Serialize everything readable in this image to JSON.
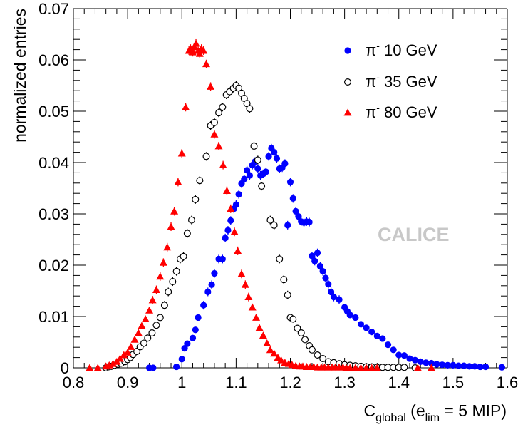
{
  "chart_data": {
    "type": "scatter",
    "x_label": {
      "main": "C",
      "sub": "global",
      "mid": " (e",
      "sub2": "lim",
      "end": " = 5 MIP)"
    },
    "y_label": "normalized entries",
    "xlim": [
      0.8,
      1.6
    ],
    "ylim": [
      0,
      0.07
    ],
    "x_ticks": [
      "0.8",
      "0.9",
      "1",
      "1.1",
      "1.2",
      "1.3",
      "1.4",
      "1.5",
      "1.6"
    ],
    "y_ticks": [
      "0",
      "0.01",
      "0.02",
      "0.03",
      "0.04",
      "0.05",
      "0.06",
      "0.07"
    ],
    "grid": false,
    "legend_position": "top-right",
    "watermark": "CALICE",
    "series": [
      {
        "name": "π⁻ 10 GeV",
        "name_main": "π",
        "name_sup": "-",
        "name_rest": " 10 GeV",
        "color": "#0000ff",
        "marker": "filled-circle",
        "points": [
          [
            0.94,
            0
          ],
          [
            0.947,
            0
          ],
          [
            0.99,
            0.0002
          ],
          [
            1.0,
            0.0017
          ],
          [
            1.005,
            0.0038
          ],
          [
            1.01,
            0.0047
          ],
          [
            1.02,
            0.0058
          ],
          [
            1.025,
            0.0074
          ],
          [
            1.03,
            0.0098
          ],
          [
            1.04,
            0.0122
          ],
          [
            1.048,
            0.0148
          ],
          [
            1.055,
            0.0162
          ],
          [
            1.06,
            0.0184
          ],
          [
            1.068,
            0.0212
          ],
          [
            1.075,
            0.0212
          ],
          [
            1.08,
            0.0253
          ],
          [
            1.085,
            0.0268
          ],
          [
            1.09,
            0.0287
          ],
          [
            1.096,
            0.031
          ],
          [
            1.1,
            0.0318
          ],
          [
            1.105,
            0.0338
          ],
          [
            1.11,
            0.0359
          ],
          [
            1.115,
            0.0368
          ],
          [
            1.12,
            0.0385
          ],
          [
            1.125,
            0.0375
          ],
          [
            1.13,
            0.0395
          ],
          [
            1.135,
            0.0402
          ],
          [
            1.14,
            0.0388
          ],
          [
            1.145,
            0.0375
          ],
          [
            1.15,
            0.0378
          ],
          [
            1.155,
            0.0382
          ],
          [
            1.16,
            0.0412
          ],
          [
            1.165,
            0.0428
          ],
          [
            1.17,
            0.042
          ],
          [
            1.175,
            0.0408
          ],
          [
            1.18,
            0.0388
          ],
          [
            1.185,
            0.039
          ],
          [
            1.19,
            0.0398
          ],
          [
            1.195,
            0.0278
          ],
          [
            1.2,
            0.0362
          ],
          [
            1.205,
            0.033
          ],
          [
            1.21,
            0.0305
          ],
          [
            1.215,
            0.0295
          ],
          [
            1.22,
            0.0285
          ],
          [
            1.225,
            0.0283
          ],
          [
            1.23,
            0.0285
          ],
          [
            1.235,
            0.0284
          ],
          [
            1.24,
            0.0218
          ],
          [
            1.245,
            0.0208
          ],
          [
            1.25,
            0.0224
          ],
          [
            1.255,
            0.0198
          ],
          [
            1.26,
            0.0188
          ],
          [
            1.265,
            0.0175
          ],
          [
            1.27,
            0.0163
          ],
          [
            1.275,
            0.0148
          ],
          [
            1.28,
            0.0138
          ],
          [
            1.29,
            0.0133
          ],
          [
            1.3,
            0.0118
          ],
          [
            1.305,
            0.011
          ],
          [
            1.31,
            0.0103
          ],
          [
            1.32,
            0.0098
          ],
          [
            1.33,
            0.0085
          ],
          [
            1.34,
            0.0078
          ],
          [
            1.35,
            0.007
          ],
          [
            1.36,
            0.0062
          ],
          [
            1.37,
            0.0057
          ],
          [
            1.38,
            0.0045
          ],
          [
            1.39,
            0.0035
          ],
          [
            1.4,
            0.0025
          ],
          [
            1.41,
            0.0024
          ],
          [
            1.42,
            0.0018
          ],
          [
            1.43,
            0.0015
          ],
          [
            1.44,
            0.0012
          ],
          [
            1.45,
            0.001
          ],
          [
            1.46,
            0.0009
          ],
          [
            1.47,
            0.0007
          ],
          [
            1.48,
            0.0006
          ],
          [
            1.49,
            0.0005
          ],
          [
            1.5,
            0.0005
          ],
          [
            1.51,
            0.0004
          ],
          [
            1.52,
            0.0004
          ],
          [
            1.53,
            0.0003
          ],
          [
            1.54,
            0.0003
          ],
          [
            1.55,
            0.0002
          ],
          [
            1.56,
            0.0002
          ],
          [
            1.59,
            0.0001
          ]
        ]
      },
      {
        "name": "π⁻ 35 GeV",
        "name_main": "π",
        "name_sup": "-",
        "name_rest": " 35 GeV",
        "color": "#000000",
        "marker": "open-circle",
        "points": [
          [
            0.86,
            0
          ],
          [
            0.865,
            0.0002
          ],
          [
            0.87,
            0.0003
          ],
          [
            0.876,
            0.0005
          ],
          [
            0.882,
            0.0007
          ],
          [
            0.888,
            0.0009
          ],
          [
            0.895,
            0.0012
          ],
          [
            0.9,
            0.0016
          ],
          [
            0.905,
            0.002
          ],
          [
            0.91,
            0.0026
          ],
          [
            0.917,
            0.0032
          ],
          [
            0.923,
            0.0041
          ],
          [
            0.93,
            0.0048
          ],
          [
            0.937,
            0.0058
          ],
          [
            0.945,
            0.0068
          ],
          [
            0.953,
            0.0083
          ],
          [
            0.96,
            0.0098
          ],
          [
            0.968,
            0.0122
          ],
          [
            0.975,
            0.0148
          ],
          [
            0.983,
            0.0168
          ],
          [
            0.99,
            0.0188
          ],
          [
            0.997,
            0.0212
          ],
          [
            1.003,
            0.0217
          ],
          [
            1.01,
            0.0262
          ],
          [
            1.018,
            0.0288
          ],
          [
            1.025,
            0.0328
          ],
          [
            1.033,
            0.0365
          ],
          [
            1.045,
            0.0412
          ],
          [
            1.053,
            0.0472
          ],
          [
            1.06,
            0.0478
          ],
          [
            1.068,
            0.0497
          ],
          [
            1.075,
            0.0508
          ],
          [
            1.082,
            0.0532
          ],
          [
            1.088,
            0.0538
          ],
          [
            1.095,
            0.0545
          ],
          [
            1.1,
            0.055
          ],
          [
            1.105,
            0.0545
          ],
          [
            1.11,
            0.0535
          ],
          [
            1.115,
            0.0525
          ],
          [
            1.12,
            0.0515
          ],
          [
            1.125,
            0.0505
          ],
          [
            1.133,
            0.0432
          ],
          [
            1.14,
            0.0405
          ],
          [
            1.147,
            0.0354
          ],
          [
            1.163,
            0.0288
          ],
          [
            1.17,
            0.0278
          ],
          [
            1.18,
            0.0212
          ],
          [
            1.188,
            0.0172
          ],
          [
            1.195,
            0.0142
          ],
          [
            1.2,
            0.0098
          ],
          [
            1.205,
            0.0095
          ],
          [
            1.213,
            0.0077
          ],
          [
            1.22,
            0.0068
          ],
          [
            1.227,
            0.0055
          ],
          [
            1.235,
            0.0043
          ],
          [
            1.24,
            0.0035
          ],
          [
            1.25,
            0.0025
          ],
          [
            1.26,
            0.0018
          ],
          [
            1.27,
            0.0012
          ],
          [
            1.28,
            0.001
          ],
          [
            1.29,
            0.0008
          ],
          [
            1.3,
            0.0006
          ],
          [
            1.31,
            0.0005
          ],
          [
            1.32,
            0.0004
          ],
          [
            1.33,
            0.0003
          ],
          [
            1.34,
            0.0002
          ],
          [
            1.35,
            0.0002
          ],
          [
            1.36,
            0.0001
          ],
          [
            1.37,
            0.0001
          ],
          [
            1.38,
            0.0001
          ],
          [
            1.39,
            0.0001
          ],
          [
            1.4,
            0.0001
          ],
          [
            1.41,
            0.0001
          ],
          [
            1.43,
            0
          ]
        ]
      },
      {
        "name": "π⁻ 80 GeV",
        "name_main": "π",
        "name_sup": "-",
        "name_rest": " 80 GeV",
        "color": "#ff0000",
        "marker": "filled-triangle",
        "points": [
          [
            0.83,
            0
          ],
          [
            0.845,
            0
          ],
          [
            0.86,
            0.0003
          ],
          [
            0.866,
            0.0005
          ],
          [
            0.873,
            0.0008
          ],
          [
            0.88,
            0.0012
          ],
          [
            0.886,
            0.0018
          ],
          [
            0.893,
            0.0025
          ],
          [
            0.9,
            0.003
          ],
          [
            0.906,
            0.0041
          ],
          [
            0.913,
            0.0055
          ],
          [
            0.92,
            0.0068
          ],
          [
            0.926,
            0.0082
          ],
          [
            0.933,
            0.0095
          ],
          [
            0.94,
            0.0112
          ],
          [
            0.946,
            0.0132
          ],
          [
            0.953,
            0.0152
          ],
          [
            0.96,
            0.0178
          ],
          [
            0.966,
            0.0205
          ],
          [
            0.973,
            0.0235
          ],
          [
            0.98,
            0.0275
          ],
          [
            0.986,
            0.0305
          ],
          [
            0.993,
            0.0362
          ],
          [
            1.0,
            0.0418
          ],
          [
            1.007,
            0.0508
          ],
          [
            1.013,
            0.0618
          ],
          [
            1.016,
            0.0622
          ],
          [
            1.02,
            0.0615
          ],
          [
            1.023,
            0.0625
          ],
          [
            1.026,
            0.0632
          ],
          [
            1.03,
            0.0618
          ],
          [
            1.033,
            0.0612
          ],
          [
            1.036,
            0.0622
          ],
          [
            1.04,
            0.0618
          ],
          [
            1.045,
            0.0592
          ],
          [
            1.053,
            0.0548
          ],
          [
            1.06,
            0.0455
          ],
          [
            1.068,
            0.0432
          ],
          [
            1.076,
            0.0395
          ],
          [
            1.083,
            0.0345
          ],
          [
            1.09,
            0.031
          ],
          [
            1.097,
            0.0265
          ],
          [
            1.103,
            0.0228
          ],
          [
            1.11,
            0.0183
          ],
          [
            1.117,
            0.0162
          ],
          [
            1.123,
            0.0138
          ],
          [
            1.13,
            0.0118
          ],
          [
            1.137,
            0.0098
          ],
          [
            1.143,
            0.0078
          ],
          [
            1.15,
            0.0063
          ],
          [
            1.157,
            0.0048
          ],
          [
            1.163,
            0.0035
          ],
          [
            1.17,
            0.0028
          ],
          [
            1.177,
            0.002
          ],
          [
            1.183,
            0.0015
          ],
          [
            1.19,
            0.001
          ],
          [
            1.197,
            0.0008
          ],
          [
            1.203,
            0.0006
          ],
          [
            1.21,
            0.0004
          ],
          [
            1.217,
            0.0003
          ],
          [
            1.223,
            0.0003
          ],
          [
            1.23,
            0.0002
          ],
          [
            1.237,
            0.0002
          ],
          [
            1.243,
            0.0002
          ],
          [
            1.25,
            0.0001
          ],
          [
            1.257,
            0.0001
          ],
          [
            1.263,
            0.0001
          ],
          [
            1.27,
            0.0001
          ],
          [
            1.277,
            0.0001
          ],
          [
            1.283,
            0.0001
          ],
          [
            1.29,
            0.0001
          ],
          [
            1.297,
            0.0001
          ],
          [
            1.303,
            0
          ],
          [
            1.31,
            0
          ],
          [
            1.32,
            0
          ],
          [
            1.33,
            0
          ],
          [
            1.34,
            0
          ],
          [
            1.35,
            0
          ],
          [
            1.36,
            0
          ],
          [
            1.435,
            0
          ],
          [
            1.46,
            0
          ]
        ]
      }
    ]
  }
}
